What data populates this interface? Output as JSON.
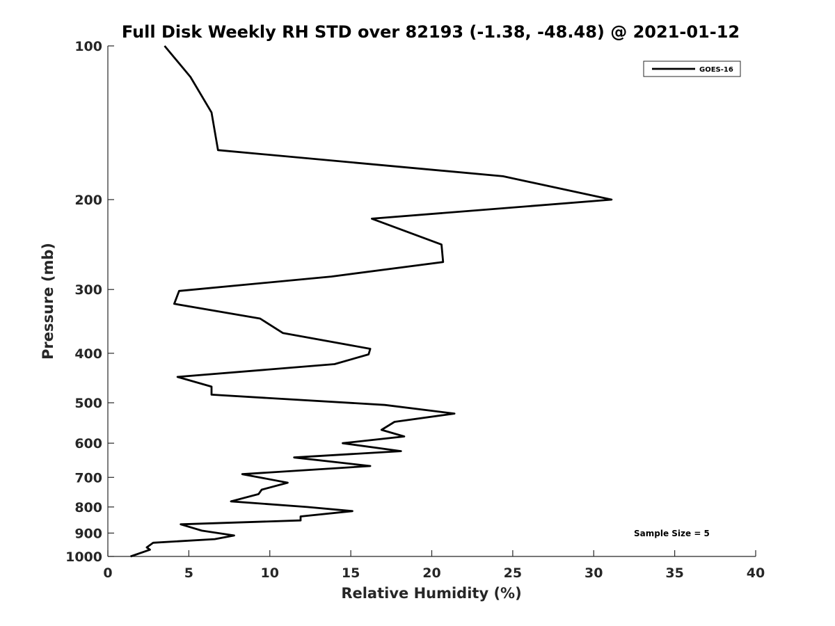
{
  "chart_data": {
    "type": "line",
    "title": "Full Disk Weekly RH STD over 82193 (-1.38, -48.48) @ 2021-01-12",
    "xlabel": "Relative Humidity (%)",
    "ylabel": "Pressure (mb)",
    "xlim": [
      0,
      40
    ],
    "ylim": [
      100,
      1000
    ],
    "yscale": "log",
    "y_reversed": true,
    "x_ticks": [
      0,
      5,
      10,
      15,
      20,
      25,
      30,
      35,
      40
    ],
    "y_ticks": [
      100,
      200,
      300,
      400,
      500,
      600,
      700,
      800,
      900,
      1000
    ],
    "x_tick_labels": [
      "0",
      "5",
      "10",
      "15",
      "20",
      "25",
      "30",
      "35",
      "40"
    ],
    "y_tick_labels": [
      "100",
      "200",
      "300",
      "400",
      "500",
      "600",
      "700",
      "800",
      "900",
      "1000"
    ],
    "grid": false,
    "legend_position": "top-right",
    "series": [
      {
        "name": "GOES-16",
        "color": "#000000",
        "points": [
          [
            3.5,
            100
          ],
          [
            5.1,
            115
          ],
          [
            6.4,
            135
          ],
          [
            6.8,
            160
          ],
          [
            24.4,
            180
          ],
          [
            31.1,
            200
          ],
          [
            16.3,
            218
          ],
          [
            20.6,
            245
          ],
          [
            20.7,
            265
          ],
          [
            13.8,
            283
          ],
          [
            4.4,
            302
          ],
          [
            4.1,
            320
          ],
          [
            9.4,
            342
          ],
          [
            10.8,
            365
          ],
          [
            16.2,
            392
          ],
          [
            16.1,
            402
          ],
          [
            14.0,
            420
          ],
          [
            4.3,
            445
          ],
          [
            6.4,
            465
          ],
          [
            6.4,
            482
          ],
          [
            17.1,
            505
          ],
          [
            21.4,
            525
          ],
          [
            17.7,
            545
          ],
          [
            16.9,
            565
          ],
          [
            18.3,
            582
          ],
          [
            14.5,
            600
          ],
          [
            18.1,
            622
          ],
          [
            11.5,
            640
          ],
          [
            16.2,
            665
          ],
          [
            8.3,
            690
          ],
          [
            11.1,
            717
          ],
          [
            9.5,
            740
          ],
          [
            9.3,
            755
          ],
          [
            7.6,
            780
          ],
          [
            12.3,
            800
          ],
          [
            15.1,
            815
          ],
          [
            11.9,
            835
          ],
          [
            11.9,
            850
          ],
          [
            4.5,
            865
          ],
          [
            5.8,
            890
          ],
          [
            7.8,
            910
          ],
          [
            6.6,
            925
          ],
          [
            2.8,
            940
          ],
          [
            2.4,
            960
          ],
          [
            2.6,
            970
          ],
          [
            1.4,
            1000
          ]
        ]
      }
    ],
    "annotation": "Sample Size = 5"
  }
}
